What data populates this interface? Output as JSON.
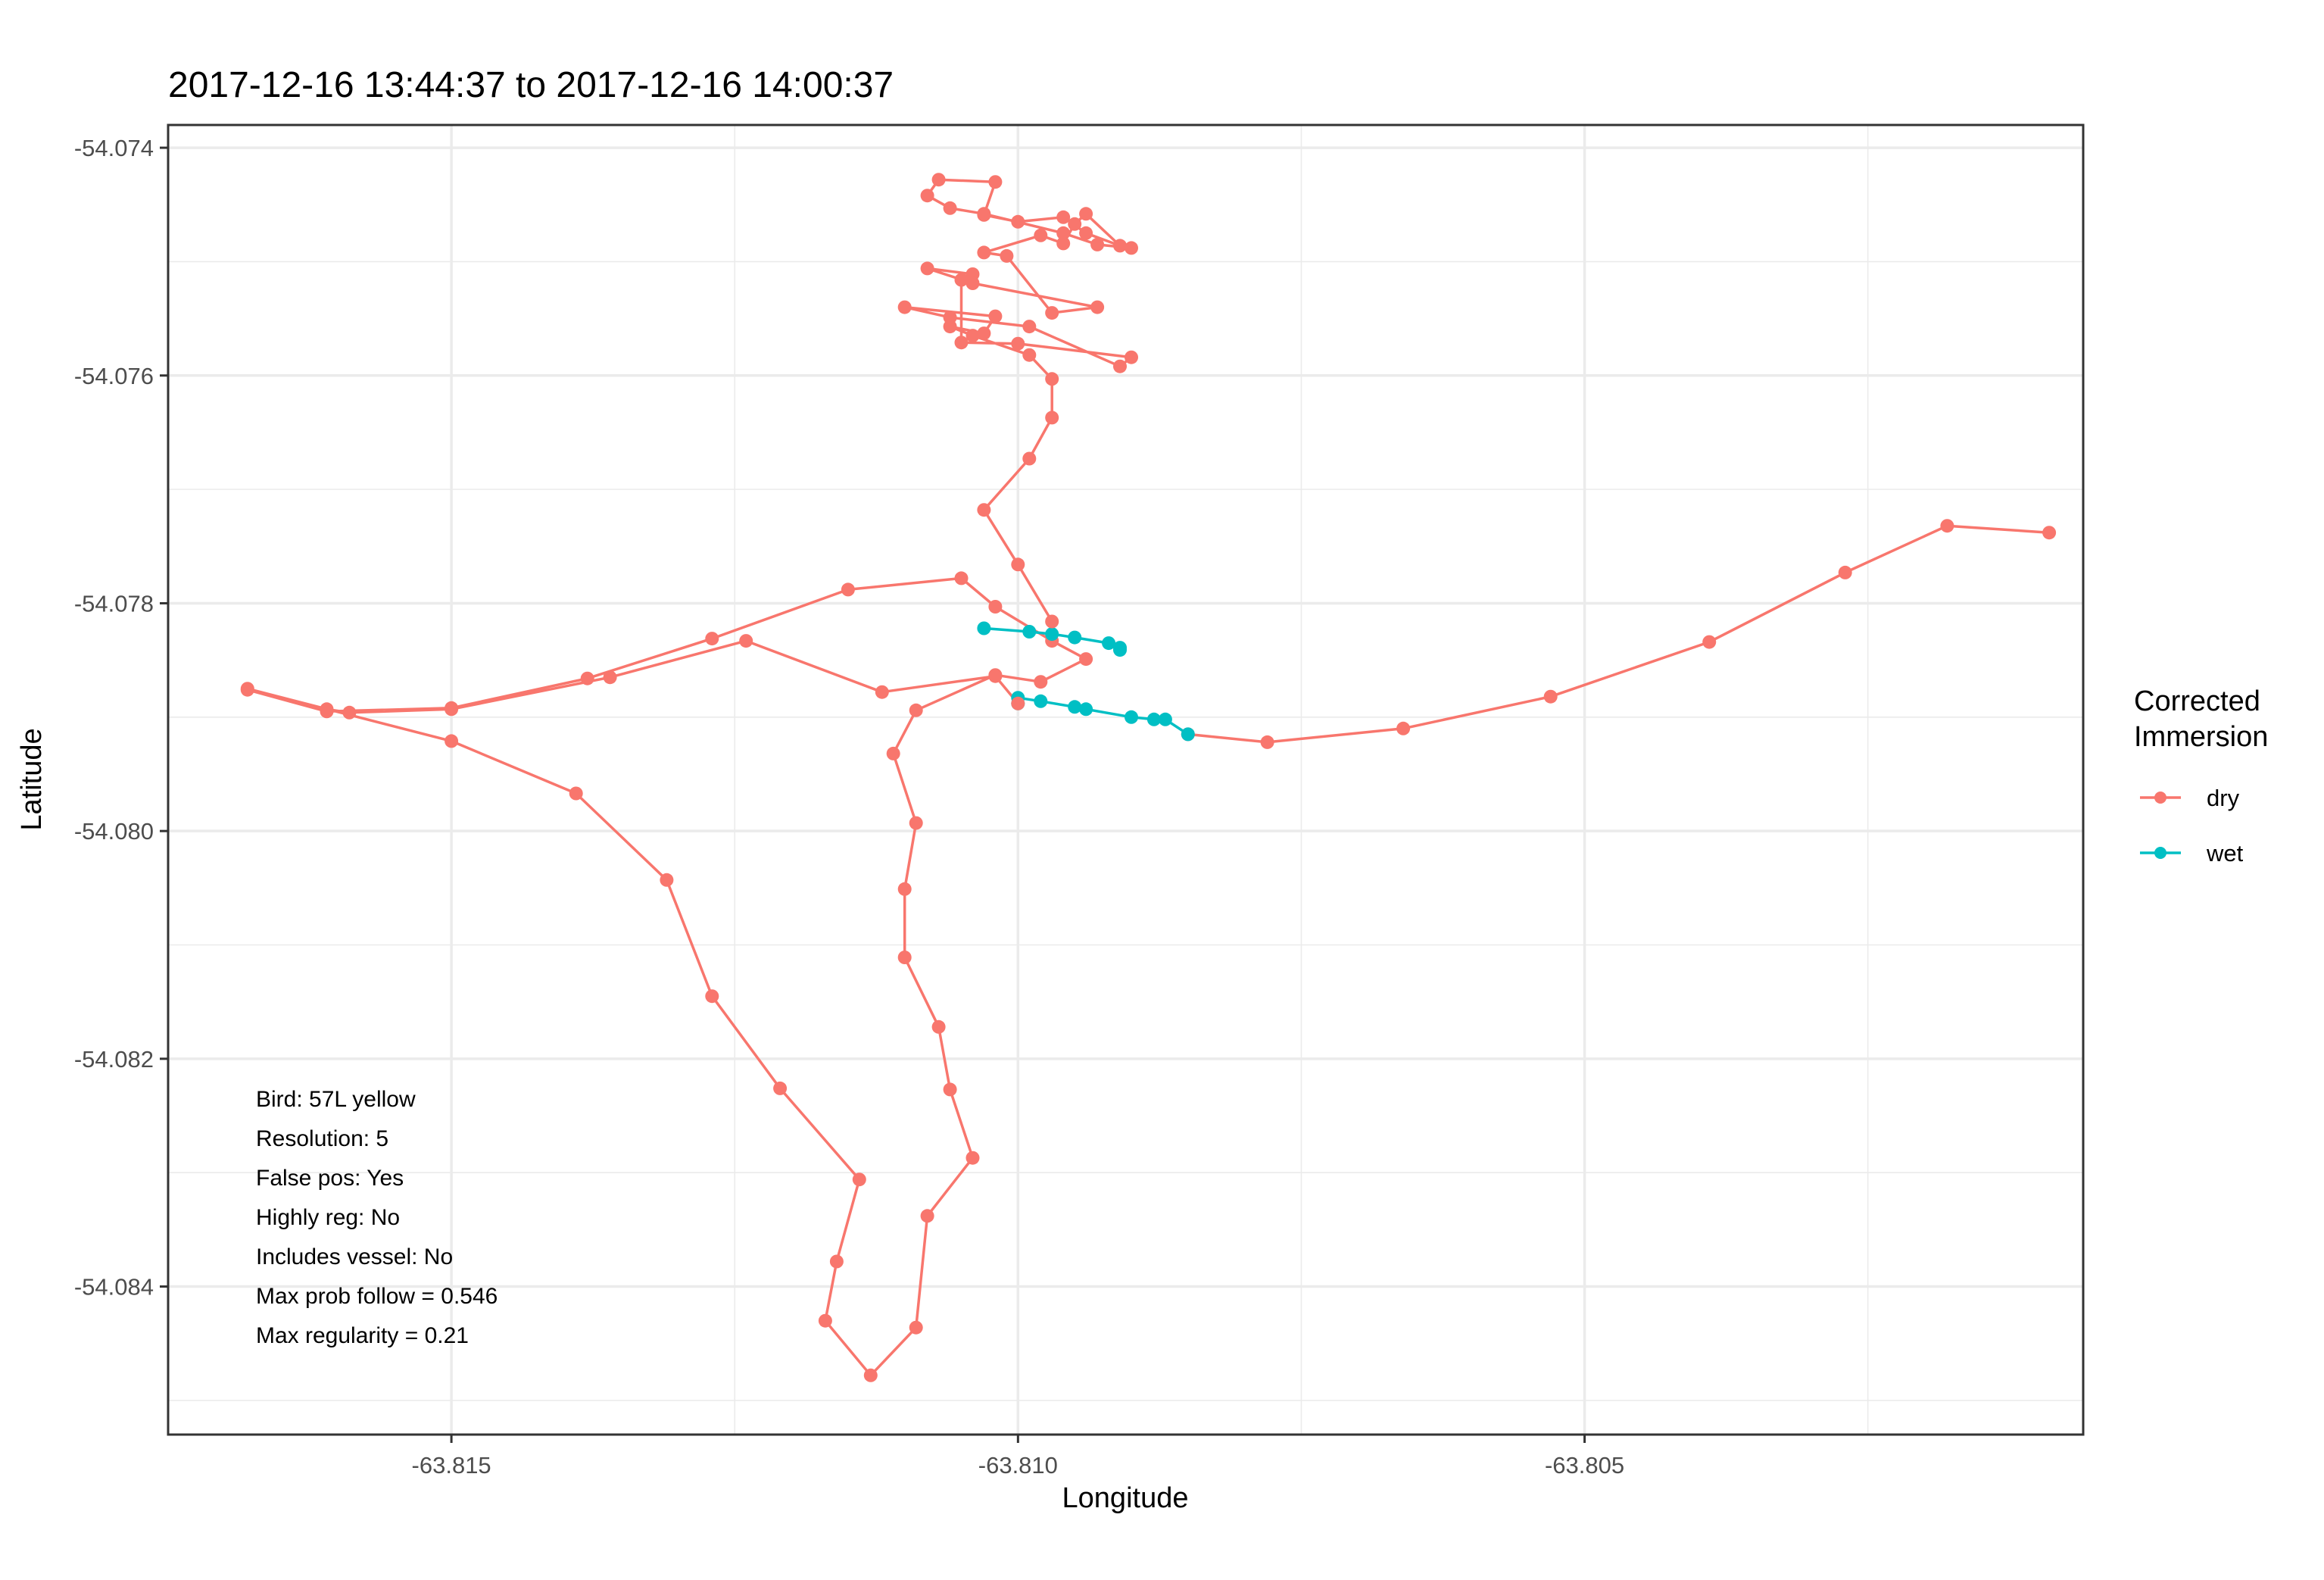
{
  "chart_data": {
    "type": "line",
    "title": "2017-12-16 13:44:37 to 2017-12-16 14:00:37",
    "xlabel": "Longitude",
    "ylabel": "Latitude",
    "xlim": [
      -63.8175,
      -63.8006
    ],
    "ylim": [
      -54.0853,
      -54.0738
    ],
    "xticks": [
      -63.815,
      -63.81,
      -63.805
    ],
    "xtick_labels": [
      "-63.815",
      "-63.810",
      "-63.805"
    ],
    "yticks": [
      -54.074,
      -54.076,
      -54.078,
      -54.08,
      -54.082,
      -54.084
    ],
    "ytick_labels": [
      "-54.074",
      "-54.076",
      "-54.078",
      "-54.080",
      "-54.082",
      "-54.084"
    ],
    "grid": true,
    "legend": {
      "title_lines": [
        "Corrected",
        "Immersion"
      ],
      "placement": "right",
      "entries": [
        {
          "label": "dry",
          "color": "#F8766D"
        },
        {
          "label": "wet",
          "color": "#00BFC4"
        }
      ]
    },
    "annotations": [
      "Bird: 57L yellow",
      "Resolution: 5",
      "False pos: Yes",
      "Highly reg: No",
      "Includes vessel: No",
      "Max prob follow = 0.546",
      "Max regularity = 0.21"
    ],
    "segments": [
      {
        "immersion": "dry",
        "points": [
          [
            -63.8009,
            -54.07738
          ],
          [
            -63.8018,
            -54.07732
          ],
          [
            -63.8027,
            -54.07773
          ],
          [
            -63.8039,
            -54.07834
          ],
          [
            -63.8053,
            -54.07882
          ],
          [
            -63.8066,
            -54.0791
          ],
          [
            -63.8078,
            -54.07922
          ],
          [
            -63.8085,
            -54.07915
          ]
        ]
      },
      {
        "immersion": "wet",
        "points": [
          [
            -63.8085,
            -54.07915
          ],
          [
            -63.8087,
            -54.07902
          ],
          [
            -63.8088,
            -54.07902
          ],
          [
            -63.809,
            -54.079
          ],
          [
            -63.8094,
            -54.07893
          ],
          [
            -63.8095,
            -54.07891
          ],
          [
            -63.8098,
            -54.07886
          ],
          [
            -63.81,
            -54.07883
          ],
          [
            -63.81,
            -54.07888
          ]
        ]
      },
      {
        "immersion": "dry",
        "points": [
          [
            -63.81,
            -54.07888
          ],
          [
            -63.8102,
            -54.07864
          ],
          [
            -63.8112,
            -54.07878
          ],
          [
            -63.8124,
            -54.07833
          ],
          [
            -63.8136,
            -54.07865
          ],
          [
            -63.815,
            -54.07893
          ],
          [
            -63.8159,
            -54.07896
          ],
          [
            -63.8161,
            -54.07893
          ],
          [
            -63.8168,
            -54.07875
          ],
          [
            -63.815,
            -54.07921
          ],
          [
            -63.8139,
            -54.07967
          ],
          [
            -63.8131,
            -54.08043
          ],
          [
            -63.8127,
            -54.08145
          ],
          [
            -63.8121,
            -54.08226
          ],
          [
            -63.8114,
            -54.08306
          ],
          [
            -63.8116,
            -54.08378
          ],
          [
            -63.8117,
            -54.0843
          ],
          [
            -63.8113,
            -54.08478
          ],
          [
            -63.8109,
            -54.08436
          ],
          [
            -63.8108,
            -54.08338
          ],
          [
            -63.8104,
            -54.08287
          ],
          [
            -63.8106,
            -54.08227
          ],
          [
            -63.8107,
            -54.08172
          ],
          [
            -63.811,
            -54.08111
          ],
          [
            -63.811,
            -54.08051
          ],
          [
            -63.8109,
            -54.07993
          ],
          [
            -63.8111,
            -54.07932
          ],
          [
            -63.8109,
            -54.07894
          ],
          [
            -63.8102,
            -54.07863
          ],
          [
            -63.8098,
            -54.07869
          ],
          [
            -63.8094,
            -54.07849
          ],
          [
            -63.8097,
            -54.07833
          ],
          [
            -63.8102,
            -54.07803
          ],
          [
            -63.8105,
            -54.07778
          ],
          [
            -63.8115,
            -54.07788
          ],
          [
            -63.8127,
            -54.07831
          ],
          [
            -63.8138,
            -54.07866
          ],
          [
            -63.815,
            -54.07892
          ],
          [
            -63.8161,
            -54.07895
          ],
          [
            -63.8168,
            -54.07876
          ]
        ]
      },
      {
        "immersion": "wet",
        "points": [
          [
            -63.8103,
            -54.07822
          ],
          [
            -63.8099,
            -54.07825
          ],
          [
            -63.8097,
            -54.07827
          ],
          [
            -63.8095,
            -54.0783
          ],
          [
            -63.8092,
            -54.07835
          ],
          [
            -63.8091,
            -54.07839
          ],
          [
            -63.8091,
            -54.07841
          ]
        ]
      },
      {
        "immersion": "dry",
        "points": [
          [
            -63.8097,
            -54.07816
          ],
          [
            -63.81,
            -54.07766
          ],
          [
            -63.8103,
            -54.07718
          ],
          [
            -63.8099,
            -54.07673
          ],
          [
            -63.8097,
            -54.07637
          ],
          [
            -63.8097,
            -54.07603
          ],
          [
            -63.8099,
            -54.07582
          ],
          [
            -63.8104,
            -54.07565
          ],
          [
            -63.8106,
            -54.07557
          ],
          [
            -63.8103,
            -54.07563
          ],
          [
            -63.8102,
            -54.07548
          ],
          [
            -63.811,
            -54.0754
          ],
          [
            -63.8106,
            -54.07549
          ],
          [
            -63.8099,
            -54.07557
          ],
          [
            -63.8091,
            -54.07592
          ],
          [
            -63.809,
            -54.07584
          ],
          [
            -63.81,
            -54.07572
          ],
          [
            -63.8105,
            -54.07571
          ],
          [
            -63.8105,
            -54.07516
          ],
          [
            -63.8104,
            -54.07511
          ],
          [
            -63.8108,
            -54.07506
          ],
          [
            -63.8104,
            -54.07519
          ],
          [
            -63.8093,
            -54.0754
          ],
          [
            -63.8097,
            -54.07545
          ],
          [
            -63.8101,
            -54.07495
          ],
          [
            -63.8103,
            -54.07492
          ],
          [
            -63.8098,
            -54.07477
          ],
          [
            -63.8096,
            -54.07484
          ],
          [
            -63.8095,
            -54.07467
          ],
          [
            -63.8094,
            -54.07458
          ],
          [
            -63.8091,
            -54.07486
          ],
          [
            -63.8094,
            -54.07475
          ],
          [
            -63.8096,
            -54.07461
          ],
          [
            -63.81,
            -54.07465
          ],
          [
            -63.8103,
            -54.07459
          ],
          [
            -63.8102,
            -54.0743
          ],
          [
            -63.8107,
            -54.07428
          ],
          [
            -63.8108,
            -54.07442
          ],
          [
            -63.8106,
            -54.07453
          ],
          [
            -63.8103,
            -54.07458
          ],
          [
            -63.8096,
            -54.07475
          ],
          [
            -63.8093,
            -54.07485
          ],
          [
            -63.809,
            -54.07488
          ]
        ]
      }
    ]
  }
}
